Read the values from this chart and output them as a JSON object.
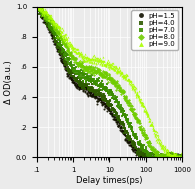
{
  "title": "",
  "xlabel": "Delay times(ps)",
  "ylabel": "Δ OD(a.u.)",
  "ylim": [
    0.0,
    1.0
  ],
  "yticks": [
    0.0,
    0.2,
    0.4,
    0.6,
    0.8,
    1.0
  ],
  "ytick_labels": [
    "0.0",
    ".2",
    ".4",
    ".6",
    ".8",
    "1.0"
  ],
  "xticks": [
    0.1,
    1,
    10,
    100,
    1000
  ],
  "xtick_labels": [
    ".1",
    "1",
    "10",
    "100",
    "1000"
  ],
  "series": [
    {
      "label": "pH=1.5",
      "color": "#111100",
      "marker": "o",
      "markersize": 1.5,
      "linestyle": "-",
      "tau1": 0.35,
      "tau2": 22,
      "A1": 0.58,
      "A2": 0.42
    },
    {
      "label": "pH=4.0",
      "color": "#2d5a00",
      "marker": "s",
      "markersize": 1.5,
      "linestyle": "-",
      "tau1": 0.38,
      "tau2": 26,
      "A1": 0.55,
      "A2": 0.45
    },
    {
      "label": "pH=7.0",
      "color": "#3a8c00",
      "marker": "s",
      "markersize": 1.5,
      "linestyle": "-",
      "tau1": 0.42,
      "tau2": 38,
      "A1": 0.5,
      "A2": 0.5
    },
    {
      "label": "pH=8.0",
      "color": "#70cc00",
      "marker": "D",
      "markersize": 1.5,
      "linestyle": "--",
      "tau1": 0.48,
      "tau2": 65,
      "A1": 0.44,
      "A2": 0.56
    },
    {
      "label": "pH=9.0",
      "color": "#aaff00",
      "marker": "^",
      "markersize": 1.5,
      "linestyle": ":",
      "tau1": 0.55,
      "tau2": 130,
      "A1": 0.38,
      "A2": 0.62
    }
  ],
  "background_color": "#ebebeb",
  "grid_color": "#ffffff",
  "legend_fontsize": 5.0,
  "axis_fontsize": 6.0,
  "tick_fontsize": 5.0
}
